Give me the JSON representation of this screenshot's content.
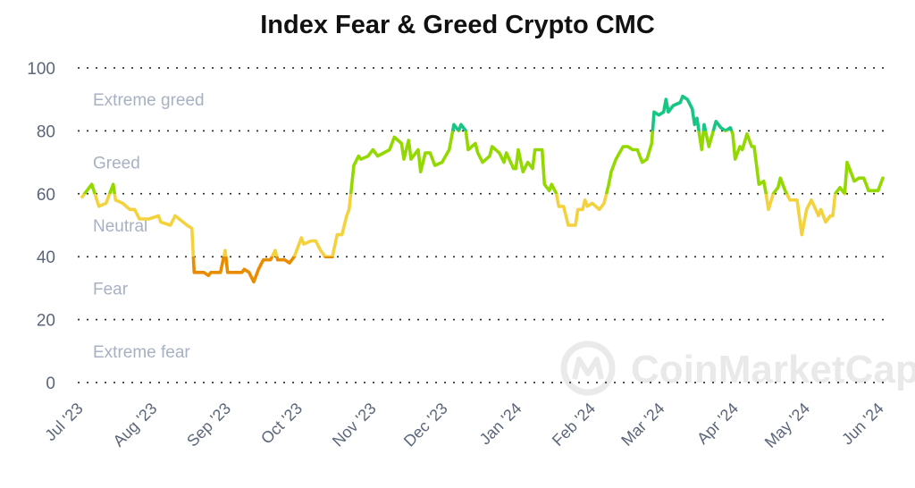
{
  "chart_data": {
    "type": "line",
    "title": "Index Fear & Greed Crypto CMC",
    "xlabel": "",
    "ylabel": "",
    "ylim": [
      0,
      100
    ],
    "y_ticks": [
      0,
      20,
      40,
      60,
      80,
      100
    ],
    "x_ticks": [
      "Jul '23",
      "Aug '23",
      "Sep '23",
      "Oct '23",
      "Nov '23",
      "Dec '23",
      "Jan '24",
      "Feb '24",
      "Mar '24",
      "Apr '24",
      "May '24",
      "Jun '24"
    ],
    "grid": true,
    "zones": [
      {
        "label": "Extreme greed",
        "min": 80,
        "max": 100,
        "color": "#16c784"
      },
      {
        "label": "Greed",
        "min": 60,
        "max": 80,
        "color": "#93d900"
      },
      {
        "label": "Neutral",
        "min": 40,
        "max": 60,
        "color": "#f3d23e"
      },
      {
        "label": "Fear",
        "min": 20,
        "max": 40,
        "color": "#ea8c00"
      },
      {
        "label": "Extreme fear",
        "min": 0,
        "max": 20,
        "color": "#ea3943"
      }
    ],
    "points": [
      [
        "2023-07-01",
        59
      ],
      [
        "2023-07-03",
        61
      ],
      [
        "2023-07-05",
        63
      ],
      [
        "2023-07-08",
        56
      ],
      [
        "2023-07-11",
        57
      ],
      [
        "2023-07-14",
        63
      ],
      [
        "2023-07-15",
        58
      ],
      [
        "2023-07-18",
        57
      ],
      [
        "2023-07-21",
        55
      ],
      [
        "2023-07-23",
        55
      ],
      [
        "2023-07-25",
        52
      ],
      [
        "2023-07-29",
        52
      ],
      [
        "2023-08-02",
        53
      ],
      [
        "2023-08-03",
        51
      ],
      [
        "2023-08-07",
        50
      ],
      [
        "2023-08-09",
        53
      ],
      [
        "2023-08-14",
        50
      ],
      [
        "2023-08-16",
        49
      ],
      [
        "2023-08-17",
        35
      ],
      [
        "2023-08-21",
        35
      ],
      [
        "2023-08-23",
        34
      ],
      [
        "2023-08-24",
        35
      ],
      [
        "2023-08-28",
        35
      ],
      [
        "2023-08-30",
        42
      ],
      [
        "2023-08-31",
        35
      ],
      [
        "2023-09-03",
        35
      ],
      [
        "2023-09-06",
        35
      ],
      [
        "2023-09-07",
        36
      ],
      [
        "2023-09-09",
        35
      ],
      [
        "2023-09-11",
        32
      ],
      [
        "2023-09-13",
        36
      ],
      [
        "2023-09-15",
        39
      ],
      [
        "2023-09-18",
        39
      ],
      [
        "2023-09-20",
        42
      ],
      [
        "2023-09-21",
        39
      ],
      [
        "2023-09-24",
        39
      ],
      [
        "2023-09-26",
        38
      ],
      [
        "2023-09-28",
        40
      ],
      [
        "2023-09-29",
        42
      ],
      [
        "2023-10-01",
        46
      ],
      [
        "2023-10-02",
        44
      ],
      [
        "2023-10-05",
        45
      ],
      [
        "2023-10-07",
        45
      ],
      [
        "2023-10-09",
        42
      ],
      [
        "2023-10-11",
        40
      ],
      [
        "2023-10-14",
        40
      ],
      [
        "2023-10-16",
        47
      ],
      [
        "2023-10-18",
        47
      ],
      [
        "2023-10-20",
        53
      ],
      [
        "2023-10-21",
        55
      ],
      [
        "2023-10-23",
        69
      ],
      [
        "2023-10-25",
        72
      ],
      [
        "2023-10-26",
        71
      ],
      [
        "2023-10-29",
        72
      ],
      [
        "2023-10-31",
        74
      ],
      [
        "2023-11-02",
        72
      ],
      [
        "2023-11-07",
        74
      ],
      [
        "2023-11-09",
        78
      ],
      [
        "2023-11-12",
        76
      ],
      [
        "2023-11-13",
        71
      ],
      [
        "2023-11-15",
        77
      ],
      [
        "2023-11-16",
        71
      ],
      [
        "2023-11-19",
        74
      ],
      [
        "2023-11-20",
        67
      ],
      [
        "2023-11-22",
        73
      ],
      [
        "2023-11-24",
        73
      ],
      [
        "2023-11-26",
        69
      ],
      [
        "2023-11-29",
        70
      ],
      [
        "2023-12-02",
        74
      ],
      [
        "2023-12-04",
        82
      ],
      [
        "2023-12-06",
        80
      ],
      [
        "2023-12-07",
        82
      ],
      [
        "2023-12-09",
        80
      ],
      [
        "2023-12-10",
        74
      ],
      [
        "2023-12-13",
        76
      ],
      [
        "2023-12-14",
        73
      ],
      [
        "2023-12-16",
        70
      ],
      [
        "2023-12-19",
        72
      ],
      [
        "2023-12-20",
        75
      ],
      [
        "2023-12-23",
        73
      ],
      [
        "2023-12-25",
        70
      ],
      [
        "2023-12-26",
        73
      ],
      [
        "2023-12-29",
        68
      ],
      [
        "2023-12-30",
        68
      ],
      [
        "2023-12-31",
        74
      ],
      [
        "2024-01-02",
        67
      ],
      [
        "2024-01-04",
        70
      ],
      [
        "2024-01-06",
        68
      ],
      [
        "2024-01-07",
        74
      ],
      [
        "2024-01-08",
        74
      ],
      [
        "2024-01-10",
        74
      ],
      [
        "2024-01-11",
        63
      ],
      [
        "2024-01-13",
        61
      ],
      [
        "2024-01-14",
        63
      ],
      [
        "2024-01-16",
        60
      ],
      [
        "2024-01-17",
        56
      ],
      [
        "2024-01-19",
        56
      ],
      [
        "2024-01-21",
        50
      ],
      [
        "2024-01-24",
        50
      ],
      [
        "2024-01-25",
        55
      ],
      [
        "2024-01-27",
        55
      ],
      [
        "2024-01-28",
        58
      ],
      [
        "2024-01-29",
        56
      ],
      [
        "2024-01-31",
        57
      ],
      [
        "2024-02-03",
        55
      ],
      [
        "2024-02-05",
        57
      ],
      [
        "2024-02-07",
        63
      ],
      [
        "2024-02-08",
        67
      ],
      [
        "2024-02-10",
        71
      ],
      [
        "2024-02-13",
        75
      ],
      [
        "2024-02-15",
        75
      ],
      [
        "2024-02-17",
        74
      ],
      [
        "2024-02-19",
        74
      ],
      [
        "2024-02-21",
        70
      ],
      [
        "2024-02-23",
        71
      ],
      [
        "2024-02-25",
        76
      ],
      [
        "2024-02-26",
        86
      ],
      [
        "2024-02-28",
        85
      ],
      [
        "2024-03-01",
        86
      ],
      [
        "2024-03-02",
        90
      ],
      [
        "2024-03-03",
        86
      ],
      [
        "2024-03-05",
        88
      ],
      [
        "2024-03-08",
        89
      ],
      [
        "2024-03-09",
        91
      ],
      [
        "2024-03-11",
        90
      ],
      [
        "2024-03-13",
        87
      ],
      [
        "2024-03-14",
        82
      ],
      [
        "2024-03-15",
        84
      ],
      [
        "2024-03-17",
        74
      ],
      [
        "2024-03-18",
        82
      ],
      [
        "2024-03-20",
        75
      ],
      [
        "2024-03-23",
        83
      ],
      [
        "2024-03-25",
        81
      ],
      [
        "2024-03-27",
        80
      ],
      [
        "2024-03-29",
        81
      ],
      [
        "2024-03-30",
        79
      ],
      [
        "2024-03-31",
        71
      ],
      [
        "2024-04-02",
        75
      ],
      [
        "2024-04-03",
        74
      ],
      [
        "2024-04-05",
        79
      ],
      [
        "2024-04-07",
        75
      ],
      [
        "2024-04-08",
        75
      ],
      [
        "2024-04-10",
        63
      ],
      [
        "2024-04-12",
        64
      ],
      [
        "2024-04-13",
        60
      ],
      [
        "2024-04-14",
        55
      ],
      [
        "2024-04-16",
        60
      ],
      [
        "2024-04-18",
        62
      ],
      [
        "2024-04-19",
        65
      ],
      [
        "2024-04-21",
        61
      ],
      [
        "2024-04-23",
        58
      ],
      [
        "2024-04-26",
        58
      ],
      [
        "2024-04-28",
        47
      ],
      [
        "2024-04-30",
        55
      ],
      [
        "2024-05-02",
        58
      ],
      [
        "2024-05-05",
        53
      ],
      [
        "2024-05-06",
        55
      ],
      [
        "2024-05-08",
        51
      ],
      [
        "2024-05-10",
        53
      ],
      [
        "2024-05-11",
        53
      ],
      [
        "2024-05-12",
        60
      ],
      [
        "2024-05-14",
        62
      ],
      [
        "2024-05-16",
        60
      ],
      [
        "2024-05-17",
        70
      ],
      [
        "2024-05-20",
        64
      ],
      [
        "2024-05-22",
        65
      ],
      [
        "2024-05-24",
        65
      ],
      [
        "2024-05-26",
        61
      ],
      [
        "2024-05-30",
        61
      ],
      [
        "2024-06-01",
        65
      ]
    ]
  },
  "watermark": "CoinMarketCap"
}
